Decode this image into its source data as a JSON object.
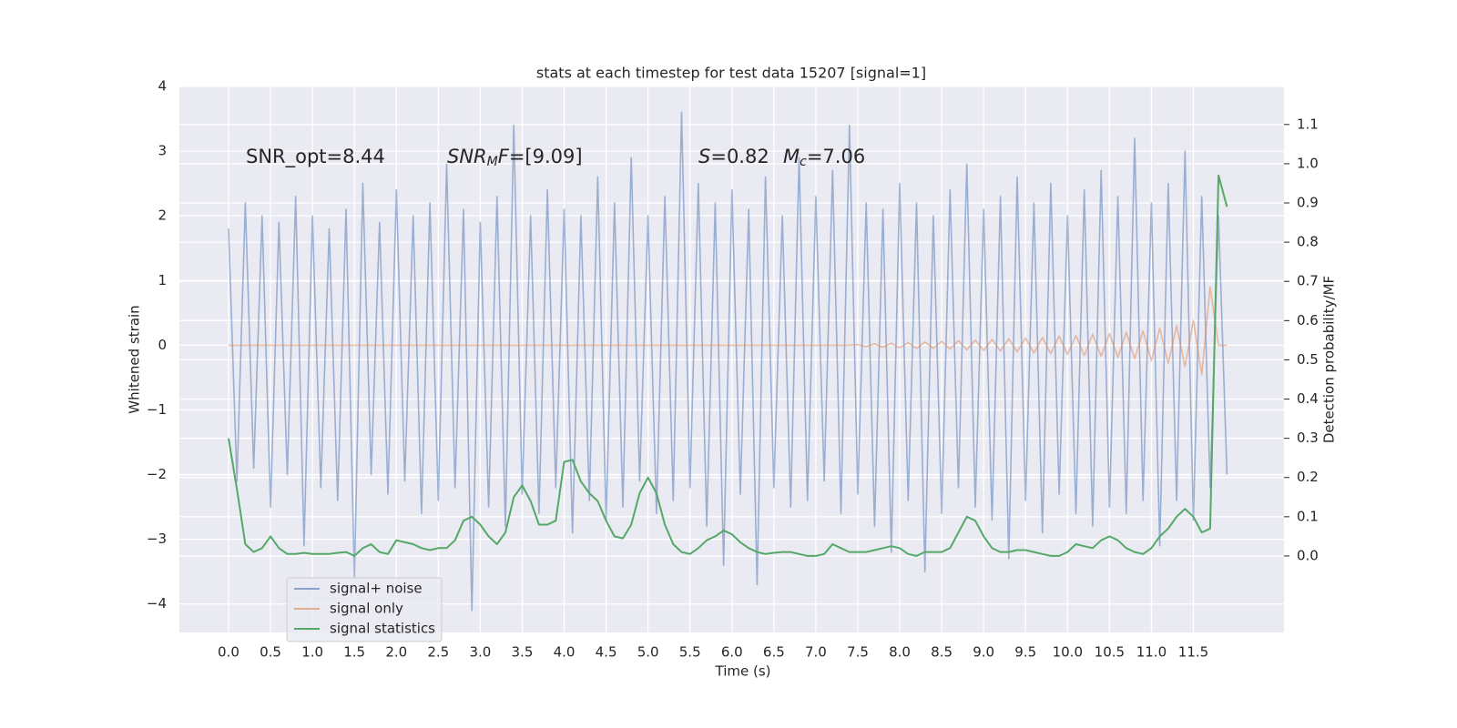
{
  "chart_data": {
    "type": "line",
    "title": "stats at each timestep for test data 15207 [signal=1]",
    "xlabel": "Time (s)",
    "ylabel": "Whitened strain",
    "y2label": "Detection probability/MF",
    "xlim": [
      -0.586,
      12.58
    ],
    "ylim": [
      -4.44,
      4
    ],
    "y2lim": [
      -0.195,
      1.197
    ],
    "xticks": [
      {
        "value": 0,
        "label": "0.0"
      },
      0.5,
      {
        "value": 1,
        "label": "1.0"
      },
      1.5,
      {
        "value": 2,
        "label": "2.0"
      },
      2.5,
      {
        "value": 3,
        "label": "3.0"
      },
      3.5,
      {
        "value": 4,
        "label": "4.0"
      },
      4.5,
      {
        "value": 5,
        "label": "5.0"
      },
      5.5,
      {
        "value": 6,
        "label": "6.0"
      },
      6.5,
      {
        "value": 7,
        "label": "7.0"
      },
      7.5,
      {
        "value": 8,
        "label": "8.0"
      },
      8.5,
      {
        "value": 9,
        "label": "9.0"
      },
      9.5,
      {
        "value": 10,
        "label": "10.0"
      },
      10.5,
      {
        "value": 11,
        "label": "11.0"
      },
      11.5
    ],
    "yticks": [
      {
        "value": -4,
        "label": "−4"
      },
      {
        "value": -3,
        "label": "−3"
      },
      {
        "value": -2,
        "label": "−2"
      },
      {
        "value": -1,
        "label": "−1"
      },
      0,
      1,
      2,
      3,
      4
    ],
    "y2ticks": [
      {
        "value": 0,
        "label": "0.0"
      },
      0.1,
      0.2,
      0.3,
      0.4,
      0.5,
      0.6,
      0.7,
      0.8,
      0.9,
      {
        "value": 1,
        "label": "1.0"
      },
      1.1
    ],
    "grid": true,
    "legend": "lower left",
    "annotations": [
      [
        {
          "text": "SNR_opt=8.44"
        }
      ],
      [
        {
          "text": "SNR",
          "style": "italic"
        },
        {
          "text": "M",
          "style": "italic-sub"
        },
        {
          "text": "F",
          "style": "italic"
        },
        {
          "text": "=[9.09]"
        }
      ],
      [
        {
          "text": "S",
          "style": "italic"
        },
        {
          "text": "=0.82"
        }
      ],
      [
        {
          "text": "M",
          "style": "italic"
        },
        {
          "text": "c",
          "style": "italic-sub"
        },
        {
          "text": "=7.06"
        }
      ]
    ],
    "x": [
      0,
      0.1,
      0.2,
      0.3,
      0.4,
      0.5,
      0.6,
      0.7,
      0.8,
      0.9,
      1,
      1.1,
      1.2,
      1.3,
      1.4,
      1.5,
      1.6,
      1.7,
      1.8,
      1.9,
      2,
      2.1,
      2.2,
      2.3,
      2.4,
      2.5,
      2.6,
      2.7,
      2.8,
      2.9,
      3,
      3.1,
      3.2,
      3.3,
      3.4,
      3.5,
      3.6,
      3.7,
      3.8,
      3.9,
      4,
      4.1,
      4.2,
      4.3,
      4.4,
      4.5,
      4.6,
      4.7,
      4.8,
      4.9,
      5,
      5.1,
      5.2,
      5.3,
      5.4,
      5.5,
      5.6,
      5.7,
      5.8,
      5.9,
      6,
      6.1,
      6.2,
      6.3,
      6.4,
      6.5,
      6.6,
      6.7,
      6.8,
      6.9,
      7,
      7.1,
      7.2,
      7.3,
      7.4,
      7.5,
      7.6,
      7.7,
      7.8,
      7.9,
      8,
      8.1,
      8.2,
      8.3,
      8.4,
      8.5,
      8.6,
      8.7,
      8.8,
      8.9,
      9,
      9.1,
      9.2,
      9.3,
      9.4,
      9.5,
      9.6,
      9.7,
      9.8,
      9.9,
      10,
      10.1,
      10.2,
      10.3,
      10.4,
      10.5,
      10.6,
      10.7,
      10.8,
      10.9,
      11,
      11.1,
      11.2,
      11.3,
      11.4,
      11.5,
      11.6,
      11.7,
      11.8,
      11.9
    ],
    "series": [
      {
        "name": "signal+ noise",
        "color": "#4c72b0",
        "values": [
          1.8,
          -2.1,
          2.2,
          -1.9,
          2.0,
          -2.5,
          1.9,
          -2.0,
          2.3,
          -3.1,
          2.0,
          -2.2,
          1.8,
          -2.4,
          2.1,
          -3.6,
          2.5,
          -2.0,
          1.9,
          -2.3,
          2.4,
          -2.1,
          2.0,
          -2.6,
          2.2,
          -2.4,
          2.8,
          -2.2,
          2.1,
          -4.1,
          1.9,
          -2.5,
          2.3,
          -2.8,
          3.4,
          -2.3,
          2.0,
          -2.6,
          2.4,
          -2.2,
          2.1,
          -2.9,
          2.0,
          -2.4,
          2.6,
          -2.7,
          2.2,
          -2.5,
          2.9,
          -2.1,
          2.0,
          -2.6,
          2.3,
          -2.4,
          3.6,
          -2.2,
          2.5,
          -2.8,
          2.2,
          -3.4,
          2.4,
          -2.3,
          2.1,
          -3.7,
          2.6,
          -2.2,
          2.0,
          -2.5,
          2.9,
          -2.4,
          2.3,
          -2.1,
          2.7,
          -2.6,
          3.4,
          -2.3,
          2.2,
          -2.8,
          2.1,
          -3.2,
          2.5,
          -2.4,
          2.2,
          -3.5,
          2.0,
          -2.6,
          2.4,
          -2.2,
          2.8,
          -2.5,
          2.1,
          -2.7,
          2.3,
          -3.3,
          2.6,
          -2.4,
          2.2,
          -2.9,
          2.5,
          -2.3,
          2.0,
          -2.6,
          2.4,
          -2.8,
          2.7,
          -2.5,
          2.3,
          -2.6,
          3.2,
          -2.4,
          2.2,
          -3.1,
          2.5,
          -2.4,
          3.0,
          -2.7,
          2.3,
          -2.2,
          2.0,
          -2.0
        ]
      },
      {
        "name": "signal only",
        "color": "#dd8452",
        "values": [
          0,
          0,
          0,
          0,
          0,
          0,
          0,
          0,
          0,
          0,
          0,
          0,
          0,
          0,
          0,
          0,
          0,
          0,
          0,
          0,
          0,
          0,
          0,
          0,
          0,
          0,
          0,
          0,
          0,
          0,
          0,
          0,
          0,
          0,
          0,
          0,
          0,
          0,
          0,
          0,
          0,
          0,
          0,
          0,
          0,
          0,
          0,
          0,
          0,
          0,
          0,
          0,
          0,
          0,
          0,
          0,
          0,
          0,
          0,
          0,
          0,
          0,
          0,
          0,
          0,
          0,
          0,
          0,
          0,
          0,
          0,
          0,
          0,
          0,
          0,
          0.01,
          -0.02,
          0.02,
          -0.03,
          0.03,
          -0.04,
          0.04,
          -0.05,
          0.05,
          -0.05,
          0.06,
          -0.06,
          0.07,
          -0.07,
          0.08,
          -0.08,
          0.09,
          -0.09,
          0.1,
          -0.1,
          0.11,
          -0.12,
          0.12,
          -0.13,
          0.14,
          -0.14,
          0.15,
          -0.16,
          0.17,
          -0.17,
          0.18,
          -0.19,
          0.2,
          -0.21,
          0.22,
          -0.24,
          0.26,
          -0.28,
          0.3,
          -0.33,
          0.38,
          -0.45,
          0.9,
          0,
          0
        ]
      },
      {
        "name": "signal statistics",
        "color": "#55a868",
        "axis": "y2",
        "values": [
          0.3,
          0.17,
          0.03,
          0.01,
          0.02,
          0.05,
          0.02,
          0.005,
          0.005,
          0.008,
          0.005,
          0.005,
          0.005,
          0.008,
          0.01,
          0.0,
          0.02,
          0.03,
          0.01,
          0.005,
          0.04,
          0.035,
          0.03,
          0.02,
          0.015,
          0.02,
          0.02,
          0.04,
          0.09,
          0.1,
          0.08,
          0.05,
          0.03,
          0.06,
          0.15,
          0.18,
          0.14,
          0.08,
          0.08,
          0.09,
          0.24,
          0.245,
          0.19,
          0.16,
          0.14,
          0.09,
          0.05,
          0.045,
          0.08,
          0.16,
          0.2,
          0.16,
          0.08,
          0.03,
          0.01,
          0.005,
          0.02,
          0.04,
          0.05,
          0.065,
          0.055,
          0.035,
          0.02,
          0.01,
          0.005,
          0.008,
          0.01,
          0.01,
          0.005,
          0.0,
          0.0,
          0.005,
          0.03,
          0.02,
          0.01,
          0.01,
          0.01,
          0.015,
          0.02,
          0.025,
          0.02,
          0.005,
          0.0,
          0.01,
          0.01,
          0.01,
          0.02,
          0.06,
          0.1,
          0.09,
          0.05,
          0.02,
          0.01,
          0.01,
          0.015,
          0.015,
          0.01,
          0.005,
          0.0,
          0.0,
          0.01,
          0.03,
          0.025,
          0.02,
          0.04,
          0.05,
          0.04,
          0.02,
          0.01,
          0.005,
          0.02,
          0.05,
          0.07,
          0.1,
          0.12,
          0.1,
          0.06,
          0.07,
          0.97,
          0.89
        ]
      }
    ]
  }
}
